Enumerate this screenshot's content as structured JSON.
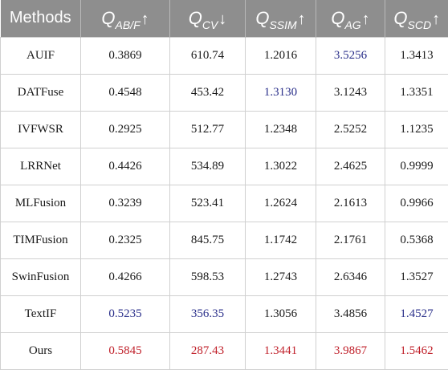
{
  "colors": {
    "header_bg": "#8e8e8e",
    "header_text": "#ffffff",
    "best": "#c0202a",
    "second_best": "#2a2f8a",
    "normal": "#1a1a1a"
  },
  "table": {
    "header": {
      "methods": "Methods",
      "metrics": [
        {
          "q": "Q",
          "sub": "AB/F",
          "arrow": "↑"
        },
        {
          "q": "Q",
          "sub": "CV",
          "arrow": "↓"
        },
        {
          "q": "Q",
          "sub": "SSIM",
          "arrow": "↑"
        },
        {
          "q": "Q",
          "sub": "AG",
          "arrow": "↑"
        },
        {
          "q": "Q",
          "sub": "SCD",
          "arrow": "↑"
        }
      ]
    },
    "rows": [
      {
        "method": "AUIF",
        "values": [
          "0.3869",
          "610.74",
          "1.2016",
          "3.5256",
          "1.3413"
        ],
        "highlight": [
          "",
          "",
          "",
          "second",
          ""
        ]
      },
      {
        "method": "DATFuse",
        "values": [
          "0.4548",
          "453.42",
          "1.3130",
          "3.1243",
          "1.3351"
        ],
        "highlight": [
          "",
          "",
          "second",
          "",
          ""
        ]
      },
      {
        "method": "IVFWSR",
        "values": [
          "0.2925",
          "512.77",
          "1.2348",
          "2.5252",
          "1.1235"
        ],
        "highlight": [
          "",
          "",
          "",
          "",
          ""
        ]
      },
      {
        "method": "LRRNet",
        "values": [
          "0.4426",
          "534.89",
          "1.3022",
          "2.4625",
          "0.9999"
        ],
        "highlight": [
          "",
          "",
          "",
          "",
          ""
        ]
      },
      {
        "method": "MLFusion",
        "values": [
          "0.3239",
          "523.41",
          "1.2624",
          "2.1613",
          "0.9966"
        ],
        "highlight": [
          "",
          "",
          "",
          "",
          ""
        ]
      },
      {
        "method": "TIMFusion",
        "values": [
          "0.2325",
          "845.75",
          "1.1742",
          "2.1761",
          "0.5368"
        ],
        "highlight": [
          "",
          "",
          "",
          "",
          ""
        ]
      },
      {
        "method": "SwinFusion",
        "values": [
          "0.4266",
          "598.53",
          "1.2743",
          "2.6346",
          "1.3527"
        ],
        "highlight": [
          "",
          "",
          "",
          "",
          ""
        ]
      },
      {
        "method": "TextIF",
        "values": [
          "0.5235",
          "356.35",
          "1.3056",
          "3.4856",
          "1.4527"
        ],
        "highlight": [
          "second",
          "second",
          "",
          "",
          "second"
        ]
      },
      {
        "method": "Ours",
        "values": [
          "0.5845",
          "287.43",
          "1.3441",
          "3.9867",
          "1.5462"
        ],
        "highlight": [
          "best",
          "best",
          "best",
          "best",
          "best"
        ]
      }
    ]
  }
}
